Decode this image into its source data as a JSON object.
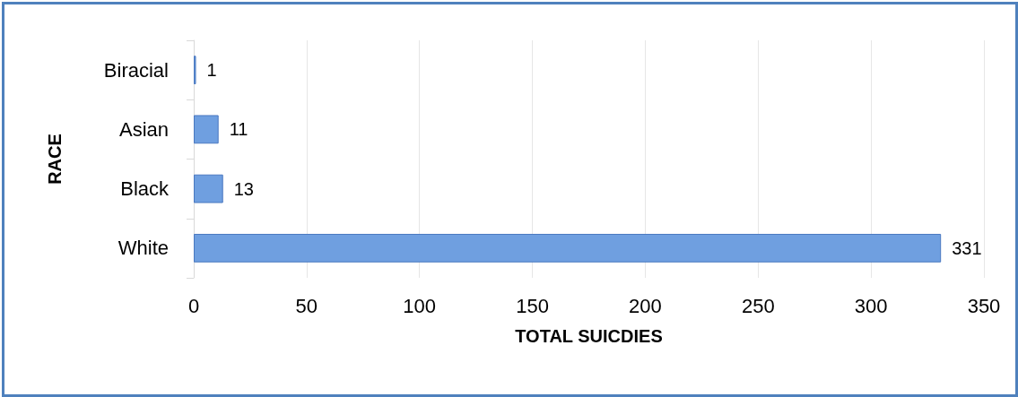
{
  "chart_data": {
    "type": "bar",
    "orientation": "horizontal",
    "xlabel": "TOTAL SUICDIES",
    "ylabel": "RACE",
    "categories": [
      "Biracial",
      "Asian",
      "Black",
      "White"
    ],
    "values": [
      1,
      11,
      13,
      331
    ],
    "color": "#6f9fe0",
    "xlim": [
      0,
      350
    ],
    "xticks": [
      0,
      50,
      100,
      150,
      200,
      250,
      300,
      350
    ],
    "grid": "x",
    "data_labels": true
  }
}
